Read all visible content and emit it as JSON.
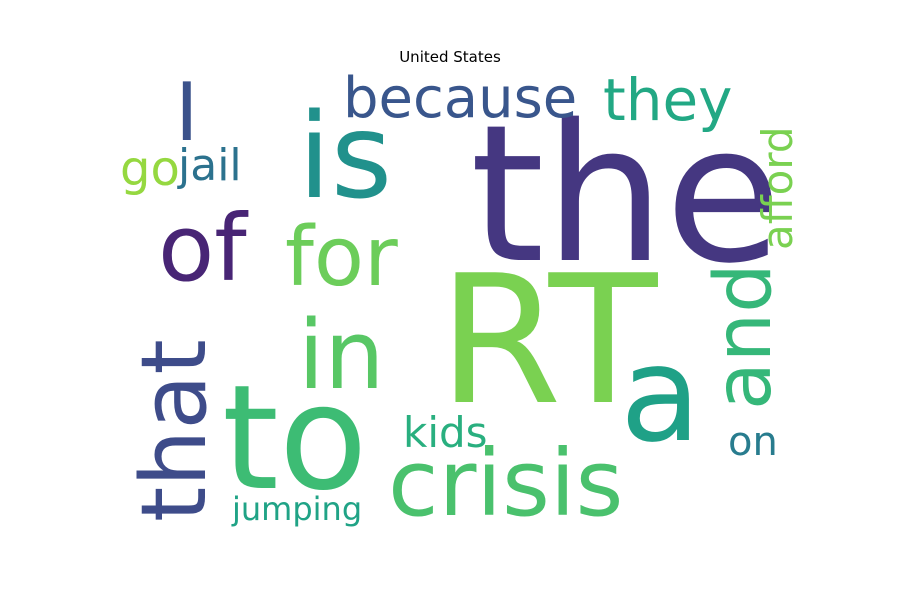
{
  "chart_data": {
    "type": "wordcloud",
    "title": "United States",
    "words": [
      {
        "text": "the",
        "color": "#453781"
      },
      {
        "text": "RT",
        "color": "#7ad151"
      },
      {
        "text": "is",
        "color": "#21918c"
      },
      {
        "text": "to",
        "color": "#3dbc74"
      },
      {
        "text": "crisis",
        "color": "#4ac16d"
      },
      {
        "text": "a",
        "color": "#1fa187"
      },
      {
        "text": "in",
        "color": "#58c765"
      },
      {
        "text": "for",
        "color": "#6ccd5a"
      },
      {
        "text": "of",
        "color": "#482575"
      },
      {
        "text": "that",
        "color": "#3e4c8a"
      },
      {
        "text": "and",
        "color": "#35b779"
      },
      {
        "text": "I",
        "color": "#3b528b"
      },
      {
        "text": "because",
        "color": "#39568c"
      },
      {
        "text": "they",
        "color": "#22a884"
      },
      {
        "text": "afford",
        "color": "#7ad151"
      },
      {
        "text": "jail",
        "color": "#2c728e"
      },
      {
        "text": "go",
        "color": "#95d840"
      },
      {
        "text": "kids",
        "color": "#29af7f"
      },
      {
        "text": "on",
        "color": "#287c8e"
      },
      {
        "text": "jumping",
        "color": "#20a386"
      }
    ]
  }
}
